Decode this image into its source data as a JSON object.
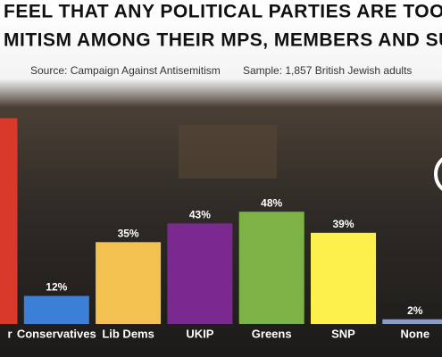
{
  "chart_data": {
    "type": "bar",
    "title": [
      "FEEL THAT ANY POLITICAL PARTIES ARE TOO TOLE",
      "MITISM AMONG THEIR MPS, MEMBERS AND SUPPOR"
    ],
    "source": "Source: Campaign Against Antisemitism",
    "sample": "Sample: 1,857 British Jewish adults",
    "categories": [
      "r",
      "Conservatives",
      "Lib Dems",
      "UKIP",
      "Greens",
      "SNP",
      "None"
    ],
    "values": [
      88,
      12,
      35,
      43,
      48,
      39,
      2
    ],
    "value_labels": [
      null,
      "12%",
      "35%",
      "43%",
      "48%",
      "39%",
      "2%"
    ],
    "colors": [
      "#d8392b",
      "#3b7fd6",
      "#f3c14f",
      "#7a2a8e",
      "#7db346",
      "#fdf04c",
      "#8a9bc4"
    ],
    "ylim": [
      0,
      100
    ]
  }
}
